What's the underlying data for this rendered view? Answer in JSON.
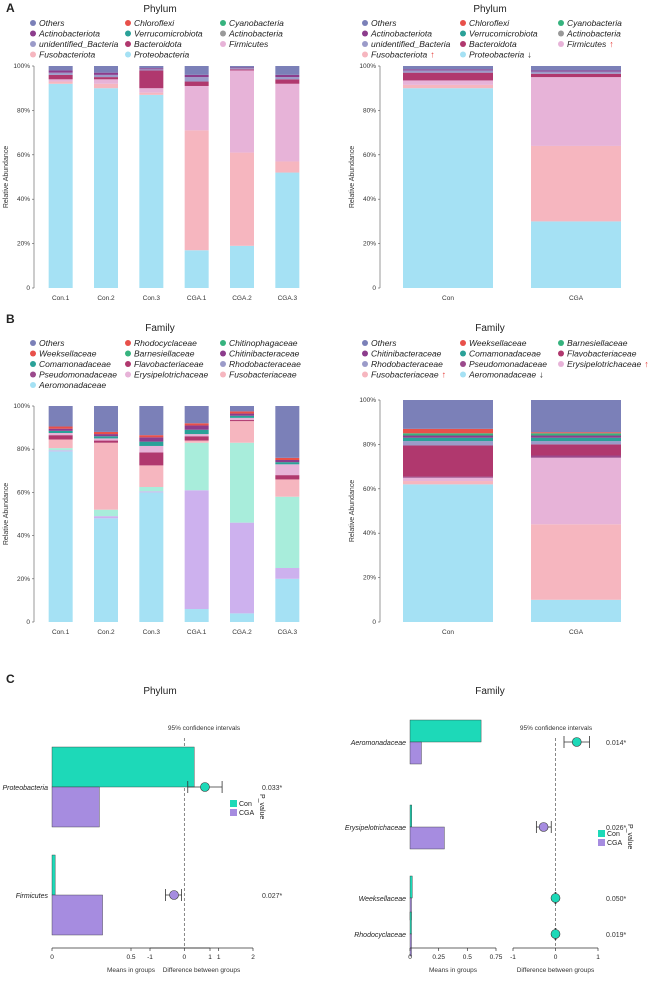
{
  "colors": {
    "Others": "#7b80b8",
    "Chloroflexi": "#e8504a",
    "Cyanobacteria": "#36b37e",
    "Actinobacteriota": "#8c3c8c",
    "Verrucomicrobiota": "#2aa198",
    "unidentified_Bacteria": "#9b9bc9",
    "Bacteroidota": "#b0386e",
    "Firmicutes": "#e7b3d8",
    "Fusobacteriota": "#f6b6bf",
    "Proteobacteria": "#a5e1f4",
    "Weeksellaceae": "#e8504a",
    "Barnesiellaceae": "#36b37e",
    "Chitinibacteraceae": "#8c3c8c",
    "Comamonadaceae": "#2aa198",
    "Flavobacteriaceae": "#b0386e",
    "Rhodobacteraceae": "#9b9bc9",
    "Pseudomonadaceae": "#9b4a8c",
    "Erysipelotrichaceae": "#e7b3d8",
    "Fusobacteriaceae": "#f6b6bf",
    "Aeromonadaceae": "#a5e1f4",
    "Rhodocyclaceae": "#e8504a",
    "Chitinophagaceae": "#36b37e",
    "FamErysipelo": "#a8eddb",
    "Fusobacteriaceae6": "#cdb1ee",
    "Con": "#1dd9b8",
    "CGA": "#a68ce0",
    "arrow_up": "#e53935"
  },
  "panel_labels": {
    "a": "A",
    "b": "B",
    "c": "C"
  },
  "common": {
    "ylabel": "Relative  Abundance",
    "yticks": [
      "0",
      "20%",
      "40%",
      "60%",
      "80%",
      "100%"
    ],
    "up_arrow": "↑",
    "down_arrow": "↓"
  },
  "chart_data": [
    {
      "id": "A_left",
      "type": "bar",
      "stacked": true,
      "title": "Phylum",
      "ylabel": "Relative  Abundance",
      "ylim": [
        0,
        100
      ],
      "categories": [
        "Con.1",
        "Con.2",
        "Con.3",
        "CGA.1",
        "CGA.2",
        "CGA.3"
      ],
      "legend": [
        {
          "name": "Others",
          "arrow": ""
        },
        {
          "name": "Chloroflexi",
          "arrow": ""
        },
        {
          "name": "Cyanobacteria",
          "arrow": ""
        },
        {
          "name": "Actinobacteriota",
          "arrow": ""
        },
        {
          "name": "Verrucomicrobiota",
          "arrow": ""
        },
        {
          "name": "Actinobacteria",
          "arrow": ""
        },
        {
          "name": "unidentified_Bacteria",
          "arrow": ""
        },
        {
          "name": "Bacteroidota",
          "arrow": ""
        },
        {
          "name": "Firmicutes",
          "arrow": ""
        },
        {
          "name": "Fusobacteriota",
          "arrow": ""
        },
        {
          "name": "Proteobacteria",
          "arrow": ""
        }
      ],
      "series": [
        {
          "name": "Proteobacteria",
          "color": "#a5e1f4",
          "values": [
            92,
            90,
            87,
            17,
            19,
            52
          ]
        },
        {
          "name": "Fusobacteriota",
          "color": "#f6b6bf",
          "values": [
            1,
            2,
            1,
            54,
            42,
            5
          ]
        },
        {
          "name": "Firmicutes",
          "color": "#e7b3d8",
          "values": [
            1,
            2,
            2,
            20,
            37,
            35
          ]
        },
        {
          "name": "Bacteroidota",
          "color": "#b0386e",
          "values": [
            2,
            1,
            8,
            2,
            0.5,
            2
          ]
        },
        {
          "name": "unidentified_Bacteria",
          "color": "#9b9bc9",
          "values": [
            1,
            1,
            0.5,
            2,
            0.5,
            1
          ]
        },
        {
          "name": "Actinobacteriota",
          "color": "#8c3c8c",
          "values": [
            1,
            1,
            0.5,
            1,
            0.3,
            1
          ]
        },
        {
          "name": "Others",
          "color": "#7b80b8",
          "values": [
            2,
            3,
            1,
            4,
            0.7,
            4
          ]
        }
      ]
    },
    {
      "id": "A_right",
      "type": "bar",
      "stacked": true,
      "title": "Phylum",
      "ylabel": "Relative  Abundance",
      "ylim": [
        0,
        100
      ],
      "categories": [
        "Con",
        "CGA"
      ],
      "legend": [
        {
          "name": "Others",
          "arrow": ""
        },
        {
          "name": "Chloroflexi",
          "arrow": ""
        },
        {
          "name": "Cyanobacteria",
          "arrow": ""
        },
        {
          "name": "Actinobacteriota",
          "arrow": ""
        },
        {
          "name": "Verrucomicrobiota",
          "arrow": ""
        },
        {
          "name": "Actinobacteria",
          "arrow": ""
        },
        {
          "name": "unidentified_Bacteria",
          "arrow": ""
        },
        {
          "name": "Bacteroidota",
          "arrow": ""
        },
        {
          "name": "Firmicutes",
          "arrow": "up"
        },
        {
          "name": "Fusobacteriota",
          "arrow": "up"
        },
        {
          "name": "Proteobacteria",
          "arrow": "down"
        }
      ],
      "series": [
        {
          "name": "Proteobacteria",
          "color": "#a5e1f4",
          "values": [
            90,
            30
          ]
        },
        {
          "name": "Fusobacteriota",
          "color": "#f6b6bf",
          "values": [
            1.5,
            34
          ]
        },
        {
          "name": "Firmicutes",
          "color": "#e7b3d8",
          "values": [
            2,
            31
          ]
        },
        {
          "name": "Bacteroidota",
          "color": "#b0386e",
          "values": [
            3.5,
            1.5
          ]
        },
        {
          "name": "unidentified_Bacteria",
          "color": "#9b9bc9",
          "values": [
            1,
            1
          ]
        },
        {
          "name": "Actinobacteriota",
          "color": "#8c3c8c",
          "values": [
            0.5,
            0.5
          ]
        },
        {
          "name": "Others",
          "color": "#7b80b8",
          "values": [
            1.5,
            2
          ]
        }
      ]
    },
    {
      "id": "B_left",
      "type": "bar",
      "stacked": true,
      "title": "Family",
      "ylabel": "Relative  Abundance",
      "ylim": [
        0,
        100
      ],
      "categories": [
        "Con.1",
        "Con.2",
        "Con.3",
        "CGA.1",
        "CGA.2",
        "CGA.3"
      ],
      "legend": [
        {
          "name": "Others",
          "arrow": ""
        },
        {
          "name": "Rhodocyclaceae",
          "arrow": ""
        },
        {
          "name": "Chitinophagaceae",
          "arrow": ""
        },
        {
          "name": "Weeksellaceae",
          "arrow": ""
        },
        {
          "name": "Barnesiellaceae",
          "arrow": ""
        },
        {
          "name": "Chitinibacteraceae",
          "arrow": ""
        },
        {
          "name": "Comamonadaceae",
          "arrow": ""
        },
        {
          "name": "Flavobacteriaceae",
          "arrow": ""
        },
        {
          "name": "Rhodobacteraceae",
          "arrow": ""
        },
        {
          "name": "Pseudomonadaceae",
          "arrow": ""
        },
        {
          "name": "Erysipelotrichaceae",
          "arrow": ""
        },
        {
          "name": "Fusobacteriaceae",
          "arrow": ""
        },
        {
          "name": "Aeromonadaceae",
          "arrow": ""
        }
      ],
      "series": [
        {
          "name": "Aeromonadaceae",
          "color": "#a5e1f4",
          "values": [
            79,
            48,
            60,
            6,
            4,
            20
          ]
        },
        {
          "name": "Fusobacteriaceae",
          "color": "#cdb1ee",
          "values": [
            0.5,
            1,
            0.5,
            55,
            42,
            5
          ]
        },
        {
          "name": "Erysipelotrichaceae",
          "color": "#a8eddb",
          "values": [
            1,
            3,
            2,
            22,
            37,
            33
          ]
        },
        {
          "name": "Pseudomonadaceae",
          "color": "#f6b6bf",
          "values": [
            4,
            31,
            10,
            1,
            10,
            8
          ]
        },
        {
          "name": "Flavobacteriaceae",
          "color": "#b0386e",
          "values": [
            2,
            1,
            6,
            2,
            0.5,
            2
          ]
        },
        {
          "name": "Rhodobacteraceae",
          "color": "#e7b3d8",
          "values": [
            1,
            1,
            3,
            1,
            1,
            5
          ]
        },
        {
          "name": "Comamonadaceae",
          "color": "#2aa198",
          "values": [
            1,
            1,
            2,
            2,
            1,
            1
          ]
        },
        {
          "name": "Chitinibacteraceae",
          "color": "#8c3c8c",
          "values": [
            1,
            1,
            2,
            2,
            1,
            1
          ]
        },
        {
          "name": "Weeksellaceae",
          "color": "#e8504a",
          "values": [
            1,
            1,
            1,
            1,
            1,
            1
          ]
        },
        {
          "name": "Others",
          "color": "#7b80b8",
          "values": [
            9.5,
            12,
            13.5,
            8,
            2.5,
            24
          ]
        }
      ]
    },
    {
      "id": "B_right",
      "type": "bar",
      "stacked": true,
      "title": "Family",
      "ylabel": "Relative  Abundance",
      "ylim": [
        0,
        100
      ],
      "categories": [
        "Con",
        "CGA"
      ],
      "legend": [
        {
          "name": "Others",
          "arrow": ""
        },
        {
          "name": "Weeksellaceae",
          "arrow": ""
        },
        {
          "name": "Barnesiellaceae",
          "arrow": ""
        },
        {
          "name": "Chitinibacteraceae",
          "arrow": ""
        },
        {
          "name": "Comamonadaceae",
          "arrow": ""
        },
        {
          "name": "Flavobacteriaceae",
          "arrow": ""
        },
        {
          "name": "Rhodobacteraceae",
          "arrow": ""
        },
        {
          "name": "Pseudomonadaceae",
          "arrow": ""
        },
        {
          "name": "Erysipelotrichaceae",
          "arrow": "up"
        },
        {
          "name": "Fusobacteriaceae",
          "arrow": "up"
        },
        {
          "name": "Aeromonadaceae",
          "arrow": "down"
        }
      ],
      "series": [
        {
          "name": "Aeromonadaceae",
          "color": "#a5e1f4",
          "values": [
            62,
            10
          ]
        },
        {
          "name": "Fusobacteriaceae",
          "color": "#f6b6bf",
          "values": [
            1.5,
            34
          ]
        },
        {
          "name": "Erysipelotrichaceae",
          "color": "#e7b3d8",
          "values": [
            1.5,
            30
          ]
        },
        {
          "name": "Pseudomonadaceae",
          "color": "#9b4a8c",
          "values": [
            0.5,
            1
          ]
        },
        {
          "name": "Flavobacteriaceae",
          "color": "#b0386e",
          "values": [
            14,
            5
          ]
        },
        {
          "name": "Rhodobacteraceae",
          "color": "#9b9bc9",
          "values": [
            2,
            1.5
          ]
        },
        {
          "name": "Comamonadaceae",
          "color": "#2aa198",
          "values": [
            1.5,
            1.5
          ]
        },
        {
          "name": "Chitinibacteraceae",
          "color": "#8c3c8c",
          "values": [
            1,
            1
          ]
        },
        {
          "name": "Barnesiellaceae",
          "color": "#36b37e",
          "values": [
            1,
            1
          ]
        },
        {
          "name": "Weeksellaceae",
          "color": "#e8504a",
          "values": [
            2,
            0.5
          ]
        },
        {
          "name": "Others",
          "color": "#7b80b8",
          "values": [
            13,
            14.5
          ]
        }
      ]
    },
    {
      "id": "C_left",
      "type": "bar",
      "title": "Phylum",
      "ci_title": "95% confidence intervals",
      "xlabel_means": "Means in groups",
      "xlabel_diff": "Difference between groups",
      "p_label": "P_value",
      "legend": [
        "Con",
        "CGA"
      ],
      "means_xlim": [
        0,
        1
      ],
      "means_ticks": [
        "0",
        "0.5",
        "1"
      ],
      "diff_xlim": [
        -1,
        2
      ],
      "diff_ticks": [
        "-1",
        "0",
        "1",
        "2"
      ],
      "rows": [
        {
          "taxon": "Proteobacteria",
          "con": 0.9,
          "cga": 0.3,
          "diff": 0.6,
          "ci": [
            0.1,
            1.1
          ],
          "p": "0.033*"
        },
        {
          "taxon": "Firmicutes",
          "con": 0.02,
          "cga": 0.32,
          "diff": -0.3,
          "ci": [
            -0.55,
            -0.08
          ],
          "p": "0.027*"
        }
      ]
    },
    {
      "id": "C_right",
      "type": "bar",
      "title": "Family",
      "ci_title": "95% confidence intervals",
      "xlabel_means": "Means in groups",
      "xlabel_diff": "Difference between groups",
      "p_label": "P_value",
      "legend": [
        "Con",
        "CGA"
      ],
      "means_xlim": [
        0,
        0.75
      ],
      "means_ticks": [
        "0",
        "0.25",
        "0.5",
        "0.75"
      ],
      "diff_xlim": [
        -1,
        1
      ],
      "diff_ticks": [
        "-1",
        "0",
        "1"
      ],
      "rows": [
        {
          "taxon": "Aeromonadaceae",
          "con": 0.62,
          "cga": 0.1,
          "diff": 0.5,
          "ci": [
            0.2,
            0.8
          ],
          "p": "0.014*"
        },
        {
          "taxon": "Erysipelotrichaceae",
          "con": 0.015,
          "cga": 0.3,
          "diff": -0.28,
          "ci": [
            -0.45,
            -0.1
          ],
          "p": "0.026*"
        },
        {
          "taxon": "Weeksellaceae",
          "con": 0.02,
          "cga": 0.0,
          "diff": 0.0,
          "ci": [
            -0.01,
            0.01
          ],
          "p": "0.050*"
        },
        {
          "taxon": "Rhodocyclaceae",
          "con": 0.01,
          "cga": 0.0,
          "diff": 0.0,
          "ci": [
            -0.01,
            0.01
          ],
          "p": "0.019*"
        }
      ]
    }
  ]
}
